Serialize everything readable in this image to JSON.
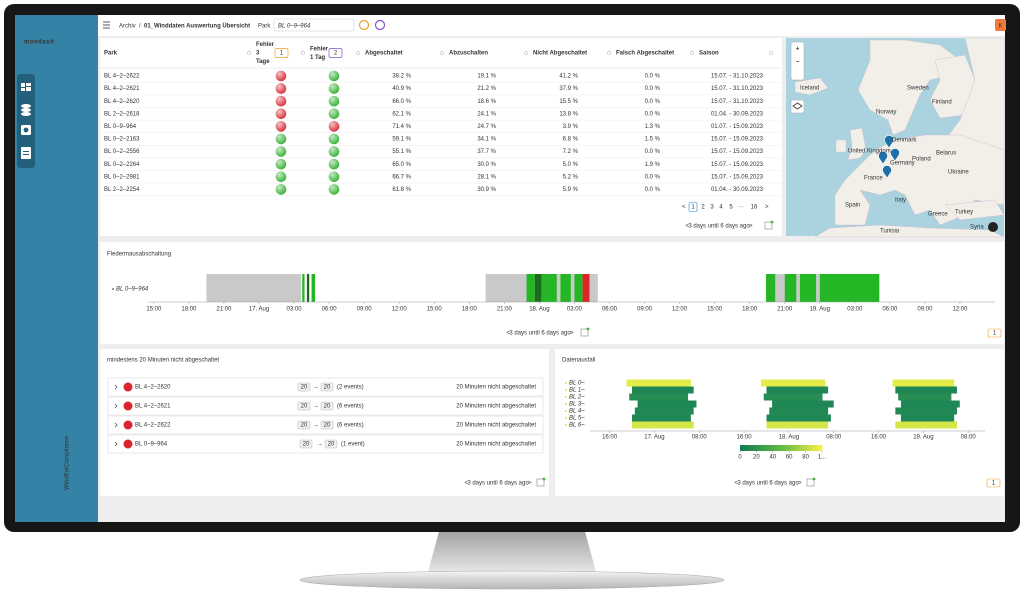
{
  "sidebar": {
    "logo": "mondas®",
    "app_title": "WindBatCompliance"
  },
  "breadcrumb": {
    "root": "Archiv",
    "separator": "/",
    "page": "01_Winddaten Auswertung Übersicht"
  },
  "filter": {
    "label": "Park",
    "value": "BL 0–9–964"
  },
  "user_initial": "K",
  "table": {
    "headers": [
      [
        "Park"
      ],
      [
        "Fehler",
        "3",
        "Tage"
      ],
      [
        "Fehler",
        "1 Tag"
      ],
      [
        "Abgeschaltet"
      ],
      [
        "Abzuschalten"
      ],
      [
        "Nicht Abgeschaltet"
      ],
      [
        "Falsch Abgeschaltet"
      ],
      [
        "Saison"
      ]
    ],
    "header_badges": [
      "1",
      "2"
    ],
    "status_colors": {
      "red": "#d9363e",
      "green": "#3db43d"
    },
    "palette": {
      "g": "#38a838",
      "r": "#d9363e",
      "k": "#333333",
      "b": "#2a8fd6"
    },
    "rows": [
      {
        "park": "BL 4–2–2622",
        "fehler_3_tage": "red",
        "fehler_1_tag": "green",
        "tones": "ggrkk",
        "cells": [
          "38.2 %",
          "19.1 %",
          "41.2 %",
          "0.0 %",
          "15.07. - 31.10.2023"
        ]
      },
      {
        "park": "BL 4–2–2621",
        "fehler_3_tage": "red",
        "fehler_1_tag": "green",
        "tones": "ggrkk",
        "cells": [
          "40.9 %",
          "21.2 %",
          "37.9 %",
          "0.0 %",
          "15.07. - 31.10.2023"
        ]
      },
      {
        "park": "BL 4–2–2620",
        "fehler_3_tage": "red",
        "fehler_1_tag": "green",
        "tones": "ggrkk",
        "cells": [
          "66.0 %",
          "18.6 %",
          "15.5 %",
          "0.0 %",
          "15.07. - 31.10.2023"
        ]
      },
      {
        "park": "BL 2–2–2618",
        "fehler_3_tage": "red",
        "fehler_1_tag": "green",
        "tones": "ggrkk",
        "cells": [
          "62.1 %",
          "24.1 %",
          "13.8 %",
          "0.0 %",
          "01.04. - 30.09.2023"
        ]
      },
      {
        "park": "BL 0–9–964",
        "fehler_3_tage": "red",
        "fehler_1_tag": "red",
        "tones": "ggkbk",
        "cells": [
          "71.4 %",
          "24.7 %",
          "3.9 %",
          "1.3 %",
          "01.07. - 15.09.2023"
        ]
      },
      {
        "park": "BL 0–2–2163",
        "fehler_3_tage": "green",
        "fehler_1_tag": "green",
        "tones": "ggrbk",
        "cells": [
          "59.1 %",
          "34.1 %",
          "6.8 %",
          "1.5 %",
          "15.07. - 15.09.2023"
        ]
      },
      {
        "park": "BL 0–2–2556",
        "fehler_3_tage": "green",
        "fehler_1_tag": "green",
        "tones": "ggrkk",
        "cells": [
          "55.1 %",
          "37.7 %",
          "7.2 %",
          "0.0 %",
          "15.07. - 15.09.2023"
        ]
      },
      {
        "park": "BL 0–2–2264",
        "fehler_3_tage": "green",
        "fehler_1_tag": "green",
        "tones": "ggrbk",
        "cells": [
          "65.0 %",
          "30.0 %",
          "5.0 %",
          "1.9 %",
          "15.07. - 15.09.2023"
        ]
      },
      {
        "park": "BL 0–2–2981",
        "fehler_3_tage": "green",
        "fehler_1_tag": "green",
        "tones": "ggrkk",
        "cells": [
          "66.7 %",
          "28.1 %",
          "5.2 %",
          "0.0 %",
          "15.07. - 15.09.2023"
        ]
      },
      {
        "park": "BL 2–2–2254",
        "fehler_3_tage": "green",
        "fehler_1_tag": "green",
        "tones": "ggrkk",
        "cells": [
          "61.8 %",
          "30.9 %",
          "5.9 %",
          "0.0 %",
          "01.04. - 30.09.2023"
        ]
      }
    ],
    "pagination": {
      "prev": "<",
      "pages": [
        "1",
        "2",
        "3",
        "4",
        "5",
        "···",
        "16"
      ],
      "next": ">",
      "current": 0
    },
    "range_nav": {
      "prev": "<",
      "text": "3 days until 6 days ago",
      "next": ">"
    }
  },
  "map": {
    "zoom_in": "+",
    "zoom_out": "−",
    "labels": [
      "Iceland",
      "Sweden",
      "Finland",
      "Norway",
      "Denmark",
      "United Kingdom",
      "Poland",
      "Belarus",
      "Germany",
      "Ukraine",
      "France",
      "Spain",
      "Italy",
      "Greece",
      "Turkey",
      "Syria",
      "Tunisia"
    ]
  },
  "chart_data": [
    {
      "type": "timeline",
      "title": "Fledermausabschaltung",
      "series_name": "BL 0–9–964",
      "state_colors": {
        "off": "#c9c9c9",
        "on": "#25b625",
        "dark": "#1d6a1d",
        "alarm": "#e02424"
      },
      "segments": [
        {
          "start": 19.5,
          "end": 27.6,
          "state": "off"
        },
        {
          "start": 27.7,
          "end": 27.9,
          "state": "on"
        },
        {
          "start": 28.1,
          "end": 28.3,
          "state": "dark"
        },
        {
          "start": 28.5,
          "end": 28.8,
          "state": "on"
        },
        {
          "start": 43.4,
          "end": 46.9,
          "state": "off"
        },
        {
          "start": 46.9,
          "end": 47.6,
          "state": "on"
        },
        {
          "start": 47.6,
          "end": 48.2,
          "state": "dark"
        },
        {
          "start": 48.2,
          "end": 49.5,
          "state": "on"
        },
        {
          "start": 49.5,
          "end": 49.8,
          "state": "off"
        },
        {
          "start": 49.8,
          "end": 50.7,
          "state": "on"
        },
        {
          "start": 50.7,
          "end": 51.0,
          "state": "off"
        },
        {
          "start": 51.0,
          "end": 51.7,
          "state": "on"
        },
        {
          "start": 51.7,
          "end": 52.3,
          "state": "alarm"
        },
        {
          "start": 52.3,
          "end": 53.0,
          "state": "off"
        },
        {
          "start": 67.4,
          "end": 68.2,
          "state": "on"
        },
        {
          "start": 68.2,
          "end": 69.0,
          "state": "off"
        },
        {
          "start": 69.0,
          "end": 70.0,
          "state": "on"
        },
        {
          "start": 70.0,
          "end": 70.3,
          "state": "off"
        },
        {
          "start": 70.3,
          "end": 71.7,
          "state": "on"
        },
        {
          "start": 71.7,
          "end": 72.0,
          "state": "off"
        },
        {
          "start": 72.0,
          "end": 77.1,
          "state": "on"
        }
      ],
      "xlim": [
        14.5,
        87
      ],
      "xticks": [
        {
          "value": 15,
          "label": "15:00"
        },
        {
          "value": 18,
          "label": "18:00"
        },
        {
          "value": 21,
          "label": "21:00"
        },
        {
          "value": 24,
          "label": "17. Aug"
        },
        {
          "value": 27,
          "label": "03:00"
        },
        {
          "value": 30,
          "label": "06:00"
        },
        {
          "value": 33,
          "label": "09:00"
        },
        {
          "value": 36,
          "label": "12:00"
        },
        {
          "value": 39,
          "label": "15:00"
        },
        {
          "value": 42,
          "label": "18:00"
        },
        {
          "value": 45,
          "label": "21:00"
        },
        {
          "value": 48,
          "label": "18. Aug"
        },
        {
          "value": 51,
          "label": "03:00"
        },
        {
          "value": 54,
          "label": "06:00"
        },
        {
          "value": 57,
          "label": "09:00"
        },
        {
          "value": 60,
          "label": "12:00"
        },
        {
          "value": 63,
          "label": "15:00"
        },
        {
          "value": 66,
          "label": "18:00"
        },
        {
          "value": 69,
          "label": "21:00"
        },
        {
          "value": 72,
          "label": "19. Aug"
        },
        {
          "value": 75,
          "label": "03:00"
        },
        {
          "value": 78,
          "label": "06:00"
        },
        {
          "value": 81,
          "label": "09:00"
        },
        {
          "value": 84,
          "label": "12:00"
        }
      ],
      "range_nav": {
        "prev": "<",
        "text": "3 days until 6 days ago",
        "next": ">"
      },
      "badge": "1"
    },
    {
      "type": "heatmap",
      "title": "Datenausfall",
      "rows": [
        {
          "label": "BL 0–",
          "cells": [
            [
              19.0,
              30.5,
              95
            ],
            [
              43.0,
              54.5,
              95
            ],
            [
              66.5,
              77.5,
              95
            ]
          ]
        },
        {
          "label": "BL 1–",
          "cells": [
            [
              20.0,
              31.0,
              10
            ],
            [
              44.0,
              55.0,
              10
            ],
            [
              67.0,
              78.0,
              10
            ]
          ]
        },
        {
          "label": "BL 2–",
          "cells": [
            [
              19.5,
              30.0,
              15
            ],
            [
              43.5,
              54.0,
              15
            ],
            [
              67.5,
              77.0,
              15
            ]
          ]
        },
        {
          "label": "BL 3–",
          "cells": [
            [
              21.0,
              31.5,
              10
            ],
            [
              45.0,
              56.0,
              10
            ],
            [
              68.0,
              78.5,
              10
            ]
          ]
        },
        {
          "label": "BL 4–",
          "cells": [
            [
              20.5,
              31.0,
              12
            ],
            [
              44.5,
              55.0,
              12
            ],
            [
              67.0,
              78.0,
              12
            ]
          ]
        },
        {
          "label": "BL 5–",
          "cells": [
            [
              20.0,
              30.5,
              10
            ],
            [
              44.0,
              55.5,
              10
            ],
            [
              68.0,
              77.5,
              10
            ]
          ]
        },
        {
          "label": "BL 6–",
          "cells": [
            [
              20.0,
              31.0,
              90
            ],
            [
              44.0,
              55.0,
              90
            ],
            [
              67.0,
              78.0,
              90
            ]
          ]
        }
      ],
      "xlim": [
        12.5,
        83
      ],
      "xticks": [
        {
          "value": 16,
          "label": "16:00"
        },
        {
          "value": 24,
          "label": "17. Aug"
        },
        {
          "value": 32,
          "label": "08:00"
        },
        {
          "value": 40,
          "label": "16:00"
        },
        {
          "value": 48,
          "label": "18. Aug"
        },
        {
          "value": 56,
          "label": "08:00"
        },
        {
          "value": 64,
          "label": "16:00"
        },
        {
          "value": 72,
          "label": "19. Aug"
        },
        {
          "value": 80,
          "label": "08:00"
        }
      ],
      "colorbar": {
        "lim": [
          0,
          100
        ],
        "ticks": [
          0,
          20,
          40,
          60,
          80,
          {
            "value": 100,
            "label": "1..."
          }
        ],
        "colors": [
          "#0e7a5a",
          "#63b842",
          "#f2f24a"
        ]
      },
      "range_nav": {
        "prev": "<",
        "text": "3 days until 6 days ago",
        "next": ">"
      },
      "badge": "1"
    }
  ],
  "events": {
    "title": "mindestens 20 Minuten nicht abgeschaltet",
    "arrow": "→",
    "rows": [
      {
        "park": "BL 4–2–2620",
        "from": "20",
        "to": "20",
        "count": "(2 events)",
        "message": "20 Minuten nicht abgeschaltet"
      },
      {
        "park": "BL 4–2–2621",
        "from": "20",
        "to": "20",
        "count": "(6 events)",
        "message": "20 Minuten nicht abgeschaltet"
      },
      {
        "park": "BL 4–2–2622",
        "from": "20",
        "to": "20",
        "count": "(6 events)",
        "message": "20 Minuten nicht abgeschaltet"
      },
      {
        "park": "BL 0–9–964",
        "from": "20",
        "to": "20",
        "count": "(1 event)",
        "message": "20 Minuten nicht abgeschaltet"
      }
    ],
    "range_nav": {
      "prev": "<",
      "text": "3 days until 6 days ago",
      "next": ">"
    }
  }
}
